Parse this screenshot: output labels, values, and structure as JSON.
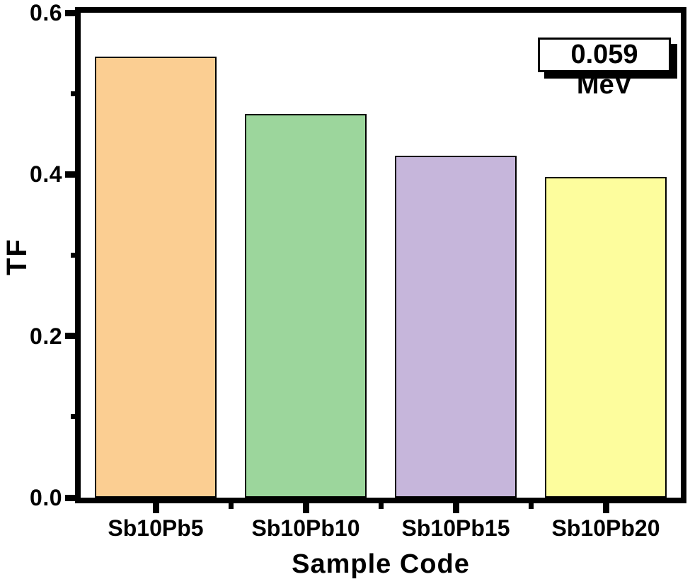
{
  "figure": {
    "background": "#ffffff",
    "axis_color": "#000000",
    "text_color": "#000000"
  },
  "chart_data": {
    "type": "bar",
    "title": "",
    "xlabel": "Sample Code",
    "ylabel": "TF",
    "categories": [
      "Sb10Pb5",
      "Sb10Pb10",
      "Sb10Pb15",
      "Sb10Pb20"
    ],
    "values": [
      0.546,
      0.475,
      0.423,
      0.397
    ],
    "bar_colors": [
      "#FBCE92",
      "#9CD69C",
      "#C6B6DB",
      "#FDFD9D"
    ],
    "bar_edge_color": "#000000",
    "ylim": [
      0,
      0.6
    ],
    "ytick_values": [
      0,
      0.2,
      0.4,
      0.6
    ],
    "ytick_labels": [
      "0.0",
      "0.2",
      "0.4",
      "0.6"
    ],
    "minor_ytick_values": [
      0.1,
      0.3,
      0.5
    ],
    "grid": false,
    "legend": {
      "label": "0.059 MeV",
      "position": "top-right"
    }
  }
}
